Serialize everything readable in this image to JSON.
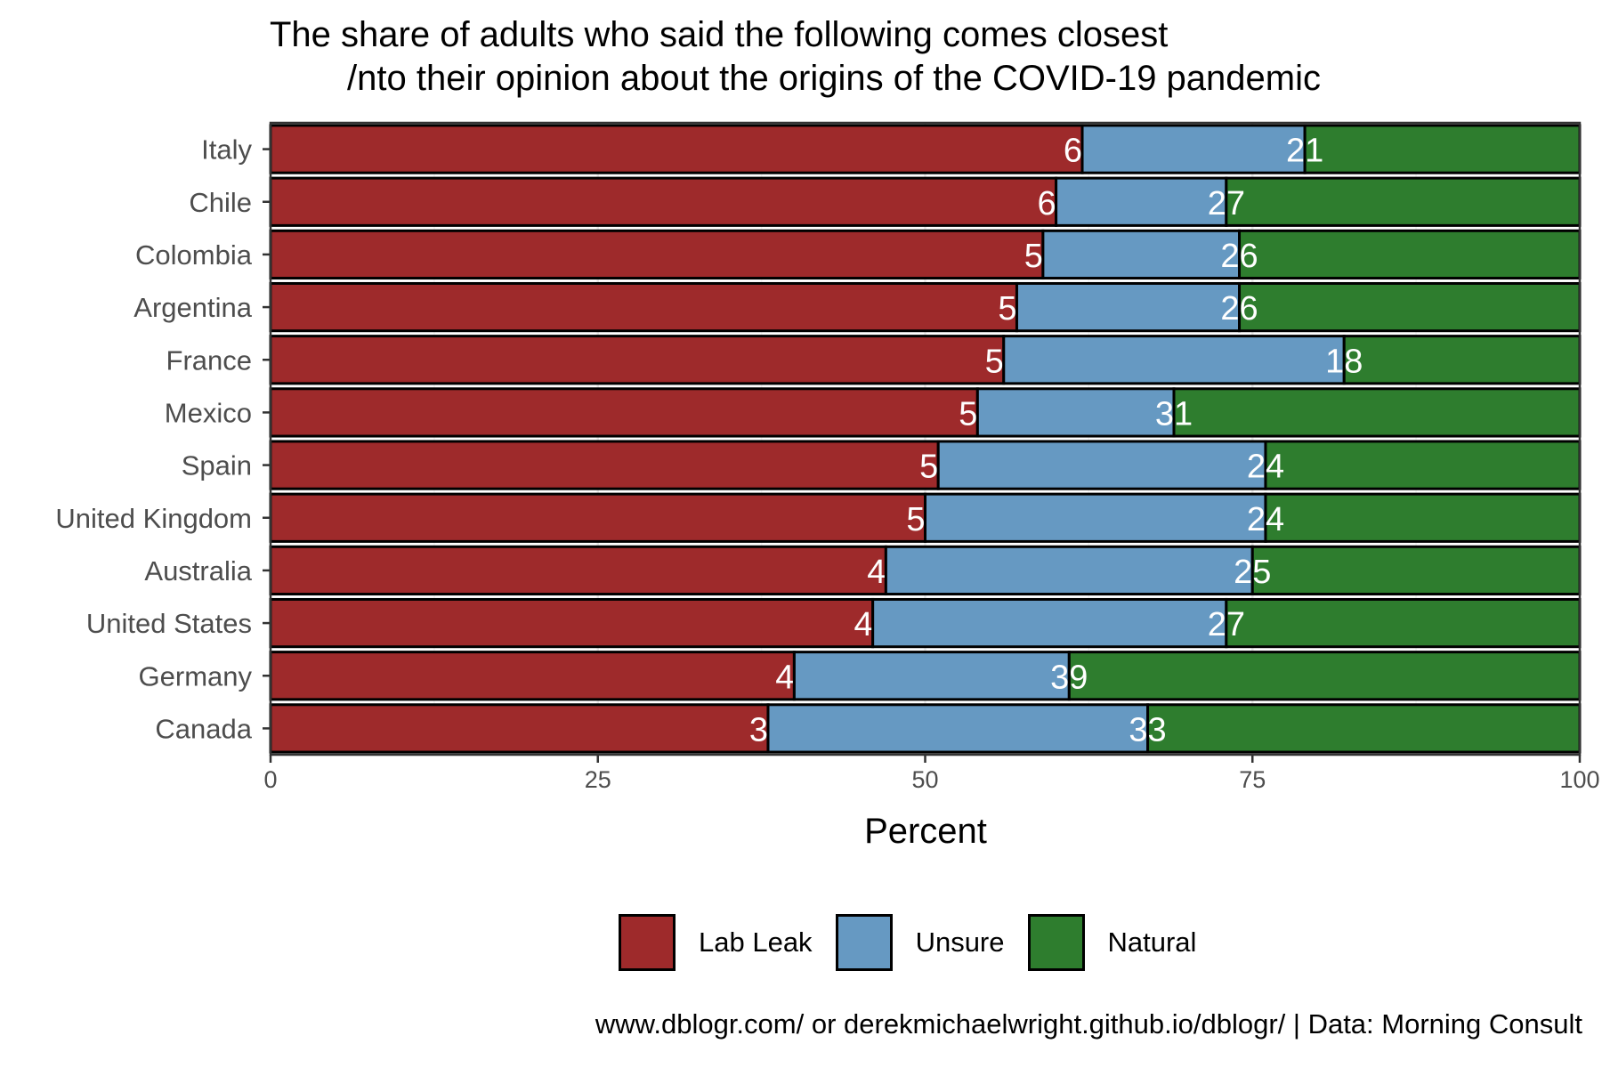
{
  "chart_data": {
    "type": "bar",
    "orientation": "horizontal",
    "stacked": true,
    "title_lines": [
      "The share of adults who said the following comes closest",
      "/nto their opinion about the origins of the COVID-19 pandemic"
    ],
    "xlabel": "Percent",
    "ylabel": "",
    "xlim": [
      0,
      100
    ],
    "x_ticks": [
      "0",
      "25",
      "50",
      "75",
      "100"
    ],
    "x_tick_values": [
      0,
      25,
      50,
      75,
      100
    ],
    "categories": [
      "Italy",
      "Chile",
      "Colombia",
      "Argentina",
      "France",
      "Mexico",
      "Spain",
      "United Kingdom",
      "Australia",
      "United States",
      "Germany",
      "Canada"
    ],
    "series": [
      {
        "name": "Lab Leak",
        "color": "#9e2a2b",
        "values": [
          62,
          60,
          59,
          57,
          56,
          54,
          51,
          50,
          47,
          46,
          40,
          38
        ]
      },
      {
        "name": "Unsure",
        "color": "#6699c2",
        "values": [
          17,
          13,
          15,
          17,
          26,
          15,
          25,
          26,
          28,
          27,
          21,
          29
        ]
      },
      {
        "name": "Natural",
        "color": "#2e7d2e",
        "values": [
          21,
          27,
          26,
          26,
          18,
          31,
          24,
          24,
          25,
          27,
          39,
          33
        ]
      }
    ],
    "legend_position": "bottom",
    "grid": true,
    "caption": "www.dblogr.com/ or derekmichaelwright.github.io/dblogr/ | Data: Morning Consult"
  }
}
